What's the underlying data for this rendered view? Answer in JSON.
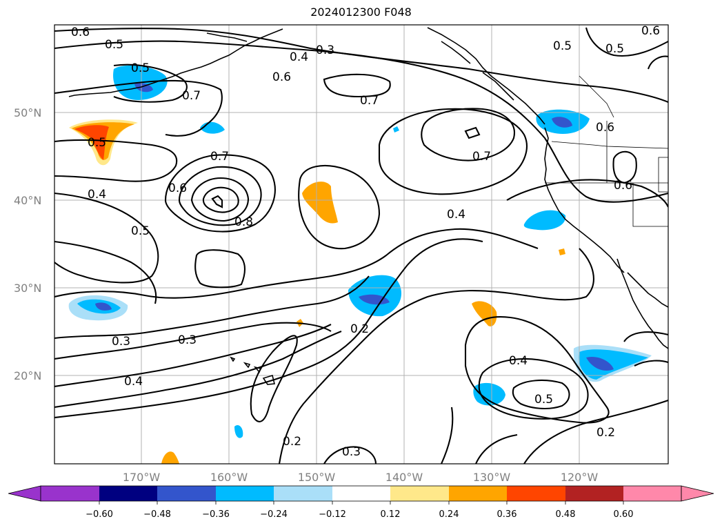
{
  "title": "2024012300 F048",
  "latitude_labels": [
    "50°N",
    "40°N",
    "30°N",
    "20°N"
  ],
  "longitude_labels": [
    "170°W",
    "160°W",
    "150°W",
    "140°W",
    "130°W",
    "120°W"
  ],
  "contour_labels": [
    "0.6",
    "0.5",
    "0.4",
    "0.3",
    "0.6",
    "0.5",
    "0.5",
    "0.6",
    "0.7",
    "0.7",
    "0.5",
    "0.7",
    "0.6",
    "0.8",
    "0.4",
    "0.5",
    "0.4",
    "0.7",
    "0.6",
    "0.6",
    "0.5",
    "0.3",
    "0.3",
    "0.4",
    "0.2",
    "0.4",
    "0.5",
    "0.2",
    "0.2",
    "0.3"
  ],
  "colorbar": {
    "ticks": [
      "−0.60",
      "−0.48",
      "−0.36",
      "−0.24",
      "−0.12",
      "0.12",
      "0.24",
      "0.36",
      "0.48",
      "0.60"
    ],
    "colors": [
      "#9933cc",
      "#000080",
      "#3355cc",
      "#00bbff",
      "#aadff8",
      "#ffffff",
      "#ffe88a",
      "#ffa500",
      "#ff4500",
      "#b22222",
      "#ff88aa"
    ]
  },
  "fill_colors": {
    "neg_light": "#aadff8",
    "neg_mid": "#00bbff",
    "neg_strong": "#3355cc",
    "pos_light": "#ffe88a",
    "pos_mid": "#ffa500",
    "pos_strong": "#ff4500"
  }
}
